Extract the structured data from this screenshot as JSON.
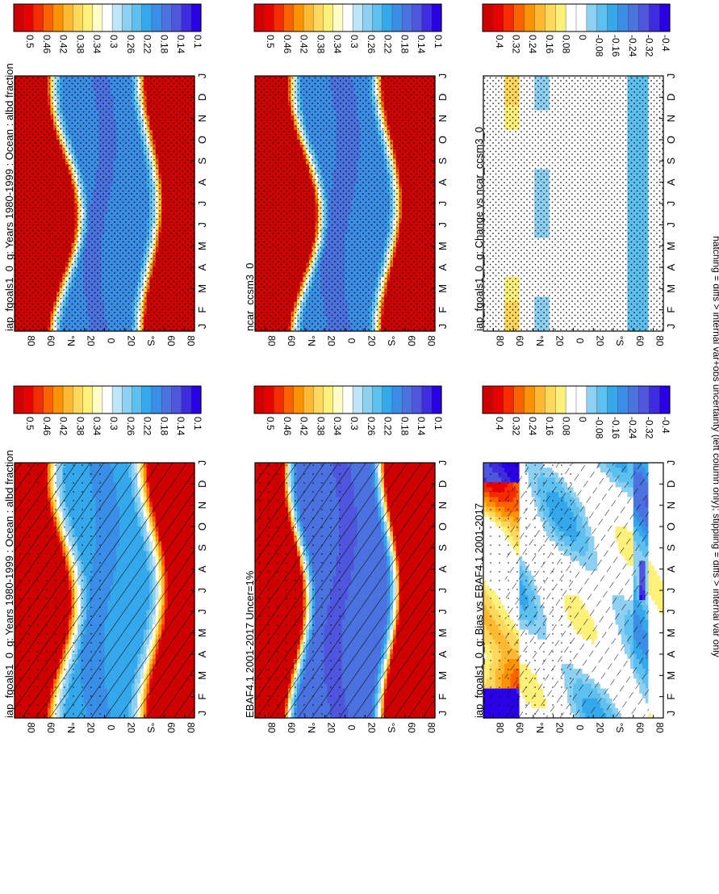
{
  "footer_note": "hatching = diffs > internal var+obs uncertainty (left column only); stippling = diffs > internal var only",
  "colors": {
    "abs_palette": [
      "#cf0000",
      "#e60000",
      "#f72b00",
      "#fa6300",
      "#fd9200",
      "#ffb832",
      "#ffd75a",
      "#fff07a",
      "#fffcc8",
      "#ffffff",
      "#bfe6f8",
      "#8ed0f2",
      "#5ec0ee",
      "#34a8ea",
      "#3b8ee6",
      "#4b72df",
      "#4f56dd",
      "#3e2de0",
      "#2a00e6"
    ],
    "diff_palette": [
      "#cf0000",
      "#e60000",
      "#f72b00",
      "#fa6300",
      "#fd9200",
      "#ffb832",
      "#ffd75a",
      "#fff07a",
      "#ffffff",
      "#ffffff",
      "#8ed0f2",
      "#5ec0ee",
      "#34a8ea",
      "#3b8ee6",
      "#4b72df",
      "#4f56dd",
      "#3e2de0",
      "#2a00e6"
    ]
  },
  "chart_data": [
    {
      "id": "p1",
      "type": "heatmap",
      "title": "iap_fgoals1_0_g: Years 1980-1999 : Ocean : albd fraction",
      "x_ticks": [
        "J",
        "F",
        "M",
        "A",
        "M",
        "J",
        "J",
        "A",
        "S",
        "O",
        "N",
        "D",
        "J"
      ],
      "y_ticks": [
        "80",
        "60",
        "°N",
        "20",
        "0",
        "20",
        "°S",
        "60",
        "80"
      ],
      "colorbar_labels": [
        "0.5",
        "0.46",
        "0.42",
        "0.38",
        "0.34",
        "0.3",
        "0.26",
        "0.22",
        "0.18",
        "0.14",
        "0.1"
      ],
      "palette": "abs",
      "hatching": "full",
      "stipple": "light",
      "model": {
        "kind": "abs",
        "pole_n": 0.56,
        "pole_s": 0.55,
        "eq": 0.27,
        "n_edge": 48,
        "s_edge": -54,
        "n_amp": 12,
        "s_amp": 10,
        "n_phase": 0.45,
        "s_phase": 0.0,
        "fade": 22,
        "strip": 0.55
      }
    },
    {
      "id": "p2",
      "type": "heatmap",
      "title": "iap_fgoals1_0_g: Years 1980-1999 : Ocean : albd fraction",
      "x_ticks": [
        "J",
        "F",
        "M",
        "A",
        "M",
        "J",
        "J",
        "A",
        "S",
        "O",
        "N",
        "D",
        "J"
      ],
      "y_ticks": [
        "80",
        "60",
        "°N",
        "20",
        "0",
        "20",
        "°S",
        "60",
        "80"
      ],
      "colorbar_labels": [
        "0.5",
        "0.46",
        "0.42",
        "0.38",
        "0.34",
        "0.3",
        "0.26",
        "0.22",
        "0.18",
        "0.14",
        "0.1"
      ],
      "palette": "abs",
      "hatching": "none",
      "stipple": "dense",
      "model": {
        "kind": "abs",
        "pole_n": 0.56,
        "pole_s": 0.55,
        "eq": 0.255,
        "n_edge": 44,
        "s_edge": -50,
        "n_amp": 14,
        "s_amp": 9,
        "n_phase": 0.45,
        "s_phase": 0.0,
        "fade": 16,
        "strip": 0.5
      }
    },
    {
      "id": "p3",
      "type": "heatmap",
      "title": "EBAF4.1 2001-2017 Uncer=1%",
      "x_ticks": [
        "J",
        "F",
        "M",
        "A",
        "M",
        "J",
        "J",
        "A",
        "S",
        "O",
        "N",
        "D",
        "J"
      ],
      "y_ticks": [
        "80",
        "60",
        "°N",
        "20",
        "0",
        "20",
        "°S",
        "60",
        "80"
      ],
      "colorbar_labels": [
        "0.5",
        "0.46",
        "0.42",
        "0.38",
        "0.34",
        "0.3",
        "0.26",
        "0.22",
        "0.18",
        "0.14",
        "0.1"
      ],
      "palette": "abs",
      "hatching": "full",
      "stipple": "light",
      "model": {
        "kind": "abs",
        "pole_n": 0.55,
        "pole_s": 0.55,
        "eq": 0.235,
        "n_edge": 52,
        "s_edge": -48,
        "n_amp": 10,
        "s_amp": 8,
        "n_phase": 0.45,
        "s_phase": 0.0,
        "fade": 14,
        "strip": 0.5
      }
    },
    {
      "id": "p4",
      "type": "heatmap",
      "title": "ncar_ccsm3_0",
      "x_ticks": [
        "J",
        "F",
        "M",
        "A",
        "M",
        "J",
        "J",
        "A",
        "S",
        "O",
        "N",
        "D",
        "J"
      ],
      "y_ticks": [
        "80",
        "60",
        "°N",
        "20",
        "0",
        "20",
        "°S",
        "60",
        "80"
      ],
      "colorbar_labels": [
        "0.5",
        "0.46",
        "0.42",
        "0.38",
        "0.34",
        "0.3",
        "0.26",
        "0.22",
        "0.18",
        "0.14",
        "0.1"
      ],
      "palette": "abs",
      "hatching": "none",
      "stipple": "dense",
      "model": {
        "kind": "abs",
        "pole_n": 0.56,
        "pole_s": 0.56,
        "eq": 0.25,
        "n_edge": 44,
        "s_edge": -48,
        "n_amp": 14,
        "s_amp": 10,
        "n_phase": 0.45,
        "s_phase": 0.0,
        "fade": 16,
        "strip": 0.5
      }
    },
    {
      "id": "p5",
      "type": "heatmap",
      "title": "iap_fgoals1_0_g: Bias vs EBAF4.1 2001-2017",
      "x_ticks": [
        "J",
        "F",
        "M",
        "A",
        "M",
        "J",
        "J",
        "A",
        "S",
        "O",
        "N",
        "D",
        "J"
      ],
      "y_ticks": [
        "80",
        "60",
        "°N",
        "20",
        "0",
        "20",
        "°S",
        "60",
        "80"
      ],
      "colorbar_labels": [
        "0.4",
        "0.32",
        "0.24",
        "0.16",
        "0.08",
        "0",
        "-0.08",
        "-0.16",
        "-0.24",
        "-0.32",
        "-0.4"
      ],
      "palette": "diff",
      "hatching": "partial",
      "stipple": "light",
      "model": {
        "kind": "bias"
      }
    },
    {
      "id": "p6",
      "type": "heatmap",
      "title": "iap_fgoals1_0_g: Change vs ncar_ccsm3_0",
      "x_ticks": [
        "J",
        "F",
        "M",
        "A",
        "M",
        "J",
        "J",
        "A",
        "S",
        "O",
        "N",
        "D",
        "J"
      ],
      "y_ticks": [
        "80",
        "60",
        "°N",
        "20",
        "0",
        "20",
        "°S",
        "60",
        "80"
      ],
      "colorbar_labels": [
        "0.4",
        "0.32",
        "0.24",
        "0.16",
        "0.08",
        "0",
        "-0.08",
        "-0.16",
        "-0.24",
        "-0.32",
        "-0.4"
      ],
      "palette": "diff",
      "hatching": "none",
      "stipple": "dense",
      "model": {
        "kind": "change"
      }
    }
  ]
}
